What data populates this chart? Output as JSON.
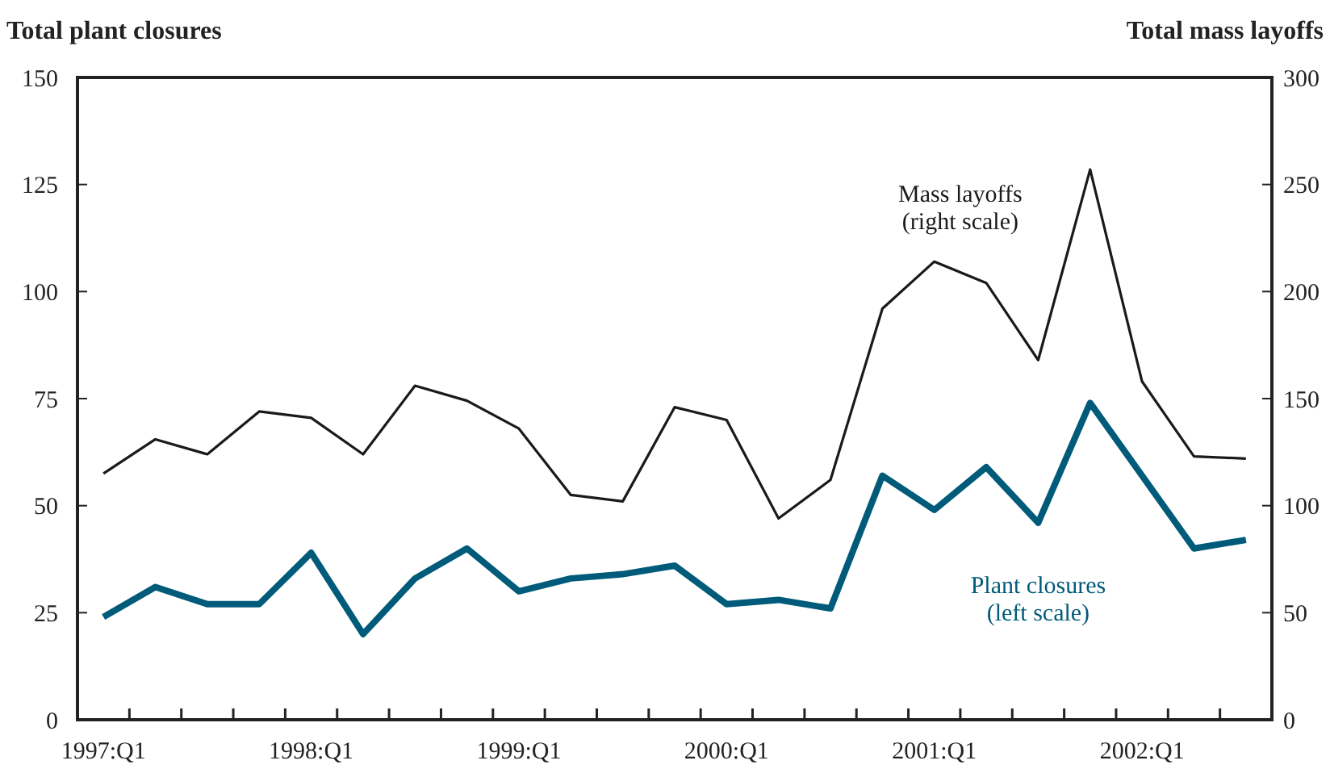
{
  "chart_data": {
    "type": "line",
    "ylabel": "Total plant closures",
    "y2label": "Total mass layoffs",
    "categories": [
      "1997:Q1",
      null,
      null,
      null,
      "1998:Q1",
      null,
      null,
      null,
      "1999:Q1",
      null,
      null,
      null,
      "2000:Q1",
      null,
      null,
      null,
      "2001:Q1",
      null,
      null,
      null,
      "2002:Q1",
      null,
      null
    ],
    "ylim": [
      0,
      150
    ],
    "yticks": [
      0,
      25,
      50,
      75,
      100,
      125,
      150
    ],
    "y2lim": [
      0,
      300
    ],
    "y2ticks": [
      0,
      50,
      100,
      150,
      200,
      250,
      300
    ],
    "grid": false,
    "legend": false,
    "marker": "none",
    "line_style": "solid",
    "series": [
      {
        "name": "Mass layoffs (right scale)",
        "color": "#1a1a1a",
        "axis": "y2",
        "values": [
          115,
          131,
          124,
          144,
          141,
          124,
          156,
          149,
          136,
          105,
          102,
          146,
          140,
          94,
          112,
          192,
          214,
          204,
          168,
          257,
          158,
          123,
          122
        ]
      },
      {
        "name": "Plant closures (left scale)",
        "color": "#005b7a",
        "values": [
          24,
          31,
          27,
          27,
          39,
          20,
          33,
          40,
          30,
          33,
          34,
          36,
          27,
          28,
          26,
          57,
          49,
          59,
          46,
          74,
          57,
          40,
          42
        ]
      }
    ]
  }
}
